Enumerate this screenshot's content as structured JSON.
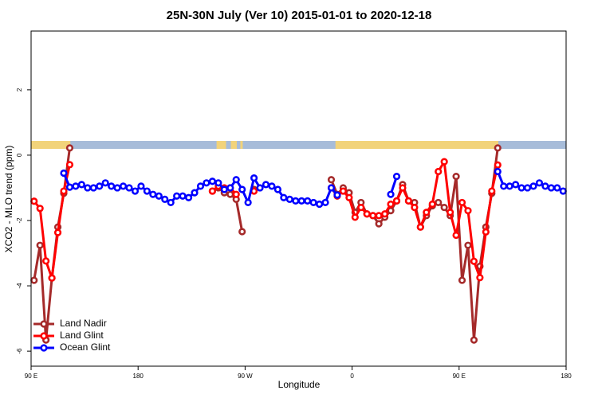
{
  "chart_data": {
    "type": "line",
    "title": "25N-30N July (Ver 10)   2015-01-01 to 2020-12-18",
    "x_label": "Longitude",
    "y_label": "XCO2 - MLO trend (ppm)",
    "xlim": [
      90,
      540
    ],
    "xticks": [
      {
        "value": 90,
        "label": "90 E"
      },
      180,
      {
        "value": 270,
        "label": "90 W"
      },
      {
        "value": 360,
        "label": "0"
      },
      {
        "value": 450,
        "label": "90 E"
      },
      {
        "value": 540,
        "label": "180"
      }
    ],
    "ylim": [
      -6.46,
      3.8
    ],
    "yticks": [
      -6,
      -4,
      -2,
      0,
      2
    ],
    "land_ranges": [
      [
        90,
        123
      ],
      [
        246,
        254
      ],
      [
        258,
        263
      ],
      [
        266,
        268
      ],
      [
        346,
        483
      ]
    ],
    "land_color": "#f2d37a",
    "ocean_color": "#a7bcd9",
    "legend": "bottom-left",
    "x": [
      92.5,
      97.5,
      102.5,
      107.5,
      112.5,
      117.5,
      122.5,
      127.5,
      132.5,
      137.5,
      142.5,
      147.5,
      152.5,
      157.5,
      162.5,
      167.5,
      172.5,
      177.5,
      182.5,
      187.5,
      192.5,
      197.5,
      202.5,
      207.5,
      212.5,
      217.5,
      222.5,
      227.5,
      232.5,
      237.5,
      242.5,
      247.5,
      252.5,
      257.5,
      262.5,
      267.5,
      272.5,
      277.5,
      282.5,
      287.5,
      292.5,
      297.5,
      302.5,
      307.5,
      312.5,
      317.5,
      322.5,
      327.5,
      332.5,
      337.5,
      342.5,
      347.5,
      352.5,
      357.5,
      362.5,
      367.5,
      372.5,
      377.5,
      382.5,
      387.5,
      392.5,
      397.5,
      402.5,
      407.5,
      412.5,
      417.5,
      422.5,
      427.5,
      432.5,
      437.5,
      442.5,
      447.5,
      452.5,
      457.5,
      462.5,
      467.5,
      472.5,
      477.5,
      482.5,
      487.5,
      492.5,
      497.5,
      502.5,
      507.5,
      512.5,
      517.5,
      522.5,
      527.5,
      532.5,
      537.5
    ],
    "series": [
      {
        "name": "Land Nadir",
        "color": "#a52a2a",
        "values": [
          -3.83,
          -2.76,
          -5.66,
          -3.76,
          -2.2,
          -1.17,
          0.22,
          null,
          null,
          null,
          null,
          null,
          null,
          null,
          null,
          null,
          null,
          null,
          null,
          null,
          null,
          null,
          null,
          null,
          null,
          null,
          null,
          null,
          null,
          null,
          -1.1,
          -1.0,
          -1.15,
          -1.2,
          -1.35,
          -2.34,
          null,
          -1.05,
          null,
          null,
          null,
          null,
          null,
          null,
          null,
          null,
          null,
          null,
          null,
          null,
          -0.75,
          -1.2,
          -1.0,
          -1.15,
          -1.75,
          -1.45,
          -1.8,
          -1.85,
          -2.1,
          -1.9,
          -1.7,
          -1.4,
          -0.9,
          -1.4,
          -1.45,
          -2.2,
          -1.85,
          -1.55,
          -1.45,
          -1.6,
          -1.85,
          -0.65,
          -3.83,
          -2.76,
          -5.66,
          -3.4,
          -2.2,
          -1.17,
          0.22,
          null,
          null,
          null,
          null,
          null,
          null,
          null,
          null,
          null,
          null,
          null
        ]
      },
      {
        "name": "Land Glint",
        "color": "#ff0000",
        "values": [
          -1.41,
          -1.63,
          -3.24,
          -3.76,
          -2.37,
          -1.1,
          -0.29,
          null,
          null,
          null,
          null,
          null,
          null,
          null,
          null,
          null,
          null,
          null,
          null,
          null,
          null,
          null,
          null,
          null,
          null,
          null,
          null,
          null,
          null,
          null,
          -1.1,
          -0.95,
          -1.0,
          -1.0,
          -1.2,
          null,
          null,
          -1.1,
          null,
          null,
          null,
          null,
          null,
          null,
          null,
          null,
          null,
          null,
          null,
          null,
          -1.0,
          -1.25,
          -1.1,
          -1.3,
          -1.9,
          -1.6,
          -1.8,
          -1.85,
          -1.85,
          -1.8,
          -1.5,
          -1.4,
          -1.0,
          -1.4,
          -1.6,
          -2.2,
          -1.75,
          -1.5,
          -0.5,
          -0.2,
          -1.75,
          -2.45,
          -1.45,
          -1.7,
          -3.25,
          -3.75,
          -2.35,
          -1.1,
          -0.3,
          null,
          null,
          null,
          null,
          null,
          null,
          null,
          null,
          null,
          null,
          null
        ]
      },
      {
        "name": "Ocean Glint",
        "color": "#0000ff",
        "values": [
          null,
          null,
          null,
          null,
          null,
          -0.55,
          -0.98,
          -0.95,
          -0.9,
          -1.0,
          -1.0,
          -0.95,
          -0.85,
          -0.95,
          -1.0,
          -0.95,
          -1.0,
          -1.1,
          -0.95,
          -1.1,
          -1.2,
          -1.25,
          -1.35,
          -1.45,
          -1.25,
          -1.25,
          -1.3,
          -1.15,
          -0.95,
          -0.85,
          -0.8,
          -0.85,
          -1.05,
          -1.0,
          -0.75,
          -1.05,
          -1.45,
          -0.7,
          -1.0,
          -0.9,
          -0.95,
          -1.05,
          -1.3,
          -1.35,
          -1.4,
          -1.4,
          -1.4,
          -1.45,
          -1.5,
          -1.45,
          -1.0,
          -1.22,
          null,
          null,
          null,
          null,
          null,
          null,
          null,
          null,
          -1.2,
          -0.65,
          null,
          null,
          null,
          null,
          null,
          null,
          null,
          null,
          null,
          null,
          null,
          null,
          null,
          null,
          null,
          null,
          -0.5,
          -0.95,
          -0.95,
          -0.9,
          -1.0,
          -1.0,
          -0.95,
          -0.85,
          -0.95,
          -1.0,
          -1.0,
          -1.1
        ]
      }
    ]
  }
}
